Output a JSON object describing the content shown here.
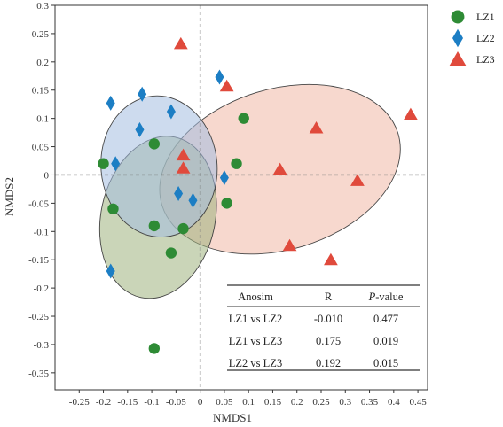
{
  "chart_data": {
    "type": "scatter",
    "title": "",
    "xlabel": "NMDS1",
    "ylabel": "NMDS2",
    "xlim": [
      -0.3,
      0.47
    ],
    "ylim": [
      -0.38,
      0.3
    ],
    "xticks": [
      "-0.25",
      "-0.2",
      "-0.15",
      "-0.1",
      "-0.05",
      "0",
      "0.05",
      "0.1",
      "0.15",
      "0.2",
      "0.25",
      "0.3",
      "0.35",
      "0.4",
      "0.45"
    ],
    "yticks": [
      "0.3",
      "0.25",
      "0.2",
      "0.15",
      "0.1",
      "0.05",
      "0",
      "-0.05",
      "-0.1",
      "-0.15",
      "-0.2",
      "-0.25",
      "-0.3",
      "-0.35"
    ],
    "grid": false,
    "legend_position": "top-right outside",
    "reference_lines": {
      "x": 0,
      "y": 0,
      "style": "dashed"
    },
    "series": [
      {
        "name": "LZ1",
        "marker": "circle",
        "color": "#2e8b35",
        "ellipse_color": "#9fb37d",
        "points": [
          {
            "x": -0.2,
            "y": 0.02
          },
          {
            "x": -0.18,
            "y": -0.06
          },
          {
            "x": -0.095,
            "y": 0.055
          },
          {
            "x": -0.095,
            "y": -0.09
          },
          {
            "x": -0.035,
            "y": -0.095
          },
          {
            "x": -0.06,
            "y": -0.138
          },
          {
            "x": 0.09,
            "y": 0.1
          },
          {
            "x": 0.075,
            "y": 0.02
          },
          {
            "x": 0.055,
            "y": -0.05
          },
          {
            "x": -0.095,
            "y": -0.307
          }
        ]
      },
      {
        "name": "LZ2",
        "marker": "diamond",
        "color": "#1c7ec4",
        "ellipse_color": "#a4bee0",
        "points": [
          {
            "x": -0.185,
            "y": 0.127
          },
          {
            "x": -0.12,
            "y": 0.143
          },
          {
            "x": -0.125,
            "y": 0.08
          },
          {
            "x": -0.175,
            "y": 0.02
          },
          {
            "x": -0.06,
            "y": 0.112
          },
          {
            "x": 0.04,
            "y": 0.173
          },
          {
            "x": -0.045,
            "y": -0.033
          },
          {
            "x": -0.015,
            "y": -0.045
          },
          {
            "x": 0.05,
            "y": -0.005
          },
          {
            "x": -0.185,
            "y": -0.17
          }
        ]
      },
      {
        "name": "LZ3",
        "marker": "triangle",
        "color": "#e04a3c",
        "ellipse_color": "#f0b8a6",
        "points": [
          {
            "x": -0.04,
            "y": 0.232
          },
          {
            "x": 0.055,
            "y": 0.157
          },
          {
            "x": -0.035,
            "y": 0.035
          },
          {
            "x": -0.035,
            "y": 0.012
          },
          {
            "x": 0.165,
            "y": 0.01
          },
          {
            "x": 0.24,
            "y": 0.083
          },
          {
            "x": 0.325,
            "y": -0.01
          },
          {
            "x": 0.435,
            "y": 0.107
          },
          {
            "x": 0.185,
            "y": -0.125
          },
          {
            "x": 0.27,
            "y": -0.15
          }
        ]
      }
    ],
    "ellipses": [
      {
        "series": "LZ3",
        "cx": 0.165,
        "cy": 0.01,
        "rx": 0.255,
        "ry": 0.142,
        "rotation_deg": -17
      },
      {
        "series": "LZ1",
        "cx": -0.087,
        "cy": -0.075,
        "rx": 0.118,
        "ry": 0.145,
        "rotation_deg": 12
      },
      {
        "series": "LZ2",
        "cx": -0.085,
        "cy": 0.015,
        "rx": 0.12,
        "ry": 0.125,
        "rotation_deg": -5
      }
    ],
    "table": {
      "headers": [
        "Anosim",
        "R",
        "P-value"
      ],
      "rows": [
        [
          "LZ1 vs LZ2",
          "-0.010",
          "0.477"
        ],
        [
          "LZ1 vs LZ3",
          "0.175",
          "0.019"
        ],
        [
          "LZ2 vs LZ3",
          "0.192",
          "0.015"
        ]
      ]
    }
  }
}
